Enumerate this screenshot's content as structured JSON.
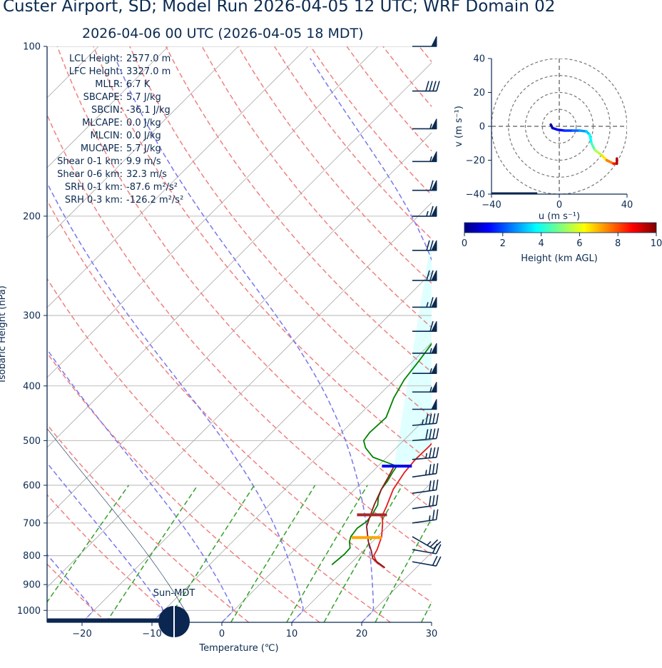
{
  "header": {
    "title": "Custer Airport, SD; Model Run 2026-04-05 12 UTC; WRF Domain 02",
    "valid_time": "2026-04-06 00 UTC  (2026-04-05 18 MDT)"
  },
  "colors": {
    "text": "#0a2a50",
    "temperature": "#e31a1c",
    "dewpoint": "#008000",
    "parcel": "#8b1a1a",
    "isotherm": "#aaaaaa",
    "dry_adiabat": "#f08080",
    "moist_adiabat": "#7777ee",
    "mixing_ratio": "#33a02c",
    "cape_fill": "#e0ffff",
    "lcl_marker": "#0000ee",
    "lfc_marker": "#a52a2a",
    "mllr_marker": "#ffa500",
    "barb": "#0a2a50"
  },
  "skewt": {
    "ylabel": "Isobaric Height (hPa)",
    "xlabel": "Temperature (℃)",
    "xlim": [
      -25,
      30
    ],
    "ylim_hpa": [
      1050,
      100
    ],
    "log_pressure": true,
    "x_ticks": [
      "−20",
      "−10",
      "0",
      "10",
      "20",
      "30"
    ],
    "x_tick_values": [
      -20,
      -10,
      0,
      10,
      20,
      30
    ],
    "y_ticks": [
      "100",
      "200",
      "300",
      "400",
      "500",
      "600",
      "700",
      "800",
      "900",
      "1000"
    ],
    "y_tick_values": [
      100,
      200,
      300,
      400,
      500,
      600,
      700,
      800,
      900,
      1000
    ],
    "sun_label": "Sun-MDT",
    "indices": [
      {
        "label": "LCL Height:",
        "value": "2577.0 m"
      },
      {
        "label": "LFC Height:",
        "value": "3327.0 m"
      },
      {
        "label": "MLLR:",
        "value": "6.7 K"
      },
      {
        "label": "SBCAPE:",
        "value": "5.7 J/kg"
      },
      {
        "label": "SBCIN:",
        "value": "-36.1 J/kg"
      },
      {
        "label": "MLCAPE:",
        "value": "0.0 J/kg"
      },
      {
        "label": "MLCIN:",
        "value": "0.0 J/kg"
      },
      {
        "label": "MUCAPE:",
        "value": "5.7 J/kg"
      },
      {
        "label": "Shear 0-1 km:",
        "value": "9.9 m/s"
      },
      {
        "label": "Shear 0-6 km:",
        "value": "32.3 m/s"
      },
      {
        "label": "SRH 0-1 km:",
        "value": "-87.6 m²/s²"
      },
      {
        "label": "SRH 0-3 km:",
        "value": "-126.2 m²/s²"
      }
    ]
  },
  "hodograph": {
    "xlabel": "u (m s⁻¹)",
    "ylabel": "v (m s⁻¹)",
    "xlim": [
      -40,
      40
    ],
    "ylim": [
      -40,
      40
    ],
    "x_ticks": [
      "−40",
      "0",
      "40"
    ],
    "x_tick_values": [
      -40,
      0,
      40
    ],
    "y_ticks": [
      "40",
      "20",
      "0",
      "−20",
      "−40"
    ],
    "y_tick_values": [
      40,
      20,
      0,
      -20,
      -40
    ],
    "ring_values": [
      10,
      20,
      30,
      40
    ]
  },
  "colorbar": {
    "label": "Height (km AGL)",
    "ticks": [
      "0",
      "2",
      "4",
      "6",
      "8",
      "10"
    ],
    "tick_values": [
      0,
      2,
      4,
      6,
      8,
      10
    ],
    "colormap": [
      "#00007f",
      "#0000ff",
      "#007fff",
      "#00ffff",
      "#7fff7f",
      "#ffff00",
      "#ff7f00",
      "#ff0000",
      "#7f0000"
    ]
  },
  "chart_data": [
    {
      "type": "line",
      "name_note": "skew-T log-P sounding",
      "series": [
        {
          "name": "",
          "role": "temperature",
          "points": [
            [
              15.5,
              840
            ],
            [
              13.8,
              825
            ],
            [
              12.2,
              800
            ],
            [
              11.8,
              780
            ],
            [
              10.6,
              740
            ],
            [
              8.8,
              700
            ],
            [
              7.7,
              680
            ],
            [
              7.0,
              655
            ],
            [
              5.5,
              610
            ],
            [
              4.7,
              570
            ],
            [
              4.4,
              540
            ],
            [
              4.5,
              510
            ],
            [
              4.3,
              495
            ],
            [
              3.0,
              460
            ],
            [
              0.9,
              410
            ],
            [
              -1.1,
              370
            ],
            [
              -3.4,
              330
            ],
            [
              -5.8,
              295
            ],
            [
              -7.5,
              272
            ],
            [
              -9.4,
              248
            ],
            [
              -9.2,
              224
            ],
            [
              -3.6,
              185
            ],
            [
              2.5,
              162
            ],
            [
              10.6,
              135
            ],
            [
              12.8,
              120
            ],
            [
              16.0,
              106
            ],
            [
              17.8,
              100
            ]
          ]
        },
        {
          "name": "",
          "role": "dewpoint",
          "points": [
            [
              7.5,
              830
            ],
            [
              7.8,
              795
            ],
            [
              7.7,
              775
            ],
            [
              6.7,
              755
            ],
            [
              6.2,
              740
            ],
            [
              5.9,
              715
            ],
            [
              6.3,
              695
            ],
            [
              6.0,
              672
            ],
            [
              5.5,
              650
            ],
            [
              4.5,
              630
            ],
            [
              3.8,
              610
            ],
            [
              3.5,
              590
            ],
            [
              3.0,
              570
            ],
            [
              2.7,
              555
            ],
            [
              -2.0,
              535
            ],
            [
              -4.4,
              515
            ],
            [
              -5.7,
              500
            ],
            [
              -6.0,
              484
            ],
            [
              -5.8,
              455
            ],
            [
              -7.5,
              420
            ],
            [
              -8.6,
              390
            ],
            [
              -9.2,
              360
            ],
            [
              -10.0,
              330
            ],
            [
              -13.0,
              280
            ],
            [
              -14.3,
              260
            ],
            [
              -14.5,
              240
            ],
            [
              -14.0,
              215
            ],
            [
              -13.5,
              190
            ],
            [
              -13.7,
              178
            ],
            [
              -11.8,
              158
            ],
            [
              -8.0,
              132
            ],
            [
              -3.5,
              110
            ],
            [
              -1.5,
              100
            ]
          ]
        },
        {
          "name": "",
          "role": "parcel",
          "points": [
            [
              15.5,
              840
            ],
            [
              12.5,
              810
            ],
            [
              11.2,
              785
            ],
            [
              9.4,
              755
            ],
            [
              7.0,
              710
            ],
            [
              6.0,
              680
            ],
            [
              5.0,
              650
            ],
            [
              3.8,
              610
            ],
            [
              2.9,
              575
            ],
            [
              2.3,
              555
            ]
          ]
        }
      ],
      "levels": {
        "lcl_hpa": 555,
        "lfc_hpa": 677,
        "mllr_hpa": 743
      },
      "wind_barbs": [
        {
          "p": 100,
          "speed_kt": 50,
          "dir_deg": 270
        },
        {
          "p": 120,
          "speed_kt": 40,
          "dir_deg": 270
        },
        {
          "p": 140,
          "speed_kt": 55,
          "dir_deg": 270
        },
        {
          "p": 160,
          "speed_kt": 55,
          "dir_deg": 270
        },
        {
          "p": 180,
          "speed_kt": 60,
          "dir_deg": 270
        },
        {
          "p": 200,
          "speed_kt": 65,
          "dir_deg": 270
        },
        {
          "p": 230,
          "speed_kt": 70,
          "dir_deg": 270
        },
        {
          "p": 260,
          "speed_kt": 70,
          "dir_deg": 270
        },
        {
          "p": 290,
          "speed_kt": 65,
          "dir_deg": 270
        },
        {
          "p": 320,
          "speed_kt": 60,
          "dir_deg": 270
        },
        {
          "p": 350,
          "speed_kt": 55,
          "dir_deg": 270
        },
        {
          "p": 380,
          "speed_kt": 55,
          "dir_deg": 270
        },
        {
          "p": 410,
          "speed_kt": 55,
          "dir_deg": 270
        },
        {
          "p": 440,
          "speed_kt": 50,
          "dir_deg": 270
        },
        {
          "p": 470,
          "speed_kt": 45,
          "dir_deg": 265
        },
        {
          "p": 500,
          "speed_kt": 40,
          "dir_deg": 265
        },
        {
          "p": 540,
          "speed_kt": 35,
          "dir_deg": 265
        },
        {
          "p": 580,
          "speed_kt": 35,
          "dir_deg": 262
        },
        {
          "p": 620,
          "speed_kt": 30,
          "dir_deg": 262
        },
        {
          "p": 660,
          "speed_kt": 30,
          "dir_deg": 262
        },
        {
          "p": 700,
          "speed_kt": 25,
          "dir_deg": 262
        },
        {
          "p": 740,
          "speed_kt": 25,
          "dir_deg": 300
        },
        {
          "p": 780,
          "speed_kt": 20,
          "dir_deg": 280
        },
        {
          "p": 820,
          "speed_kt": 20,
          "dir_deg": 280
        }
      ]
    },
    {
      "type": "line",
      "name_note": "hodograph colored by height",
      "points": [
        {
          "u": -5,
          "v": 1,
          "h": 0.0
        },
        {
          "u": -4,
          "v": -1,
          "h": 0.5
        },
        {
          "u": -1,
          "v": -2,
          "h": 1.0
        },
        {
          "u": 3,
          "v": -2.5,
          "h": 1.5
        },
        {
          "u": 8,
          "v": -2.5,
          "h": 2.0
        },
        {
          "u": 12,
          "v": -2.5,
          "h": 2.5
        },
        {
          "u": 16,
          "v": -3,
          "h": 3.0
        },
        {
          "u": 18,
          "v": -5,
          "h": 3.5
        },
        {
          "u": 19,
          "v": -10,
          "h": 4.0
        },
        {
          "u": 21,
          "v": -14,
          "h": 5.0
        },
        {
          "u": 25,
          "v": -17,
          "h": 6.0
        },
        {
          "u": 28,
          "v": -20,
          "h": 7.0
        },
        {
          "u": 32,
          "v": -22,
          "h": 8.0
        },
        {
          "u": 34,
          "v": -22,
          "h": 9.0
        },
        {
          "u": 34,
          "v": -19,
          "h": 10.0
        }
      ]
    }
  ]
}
